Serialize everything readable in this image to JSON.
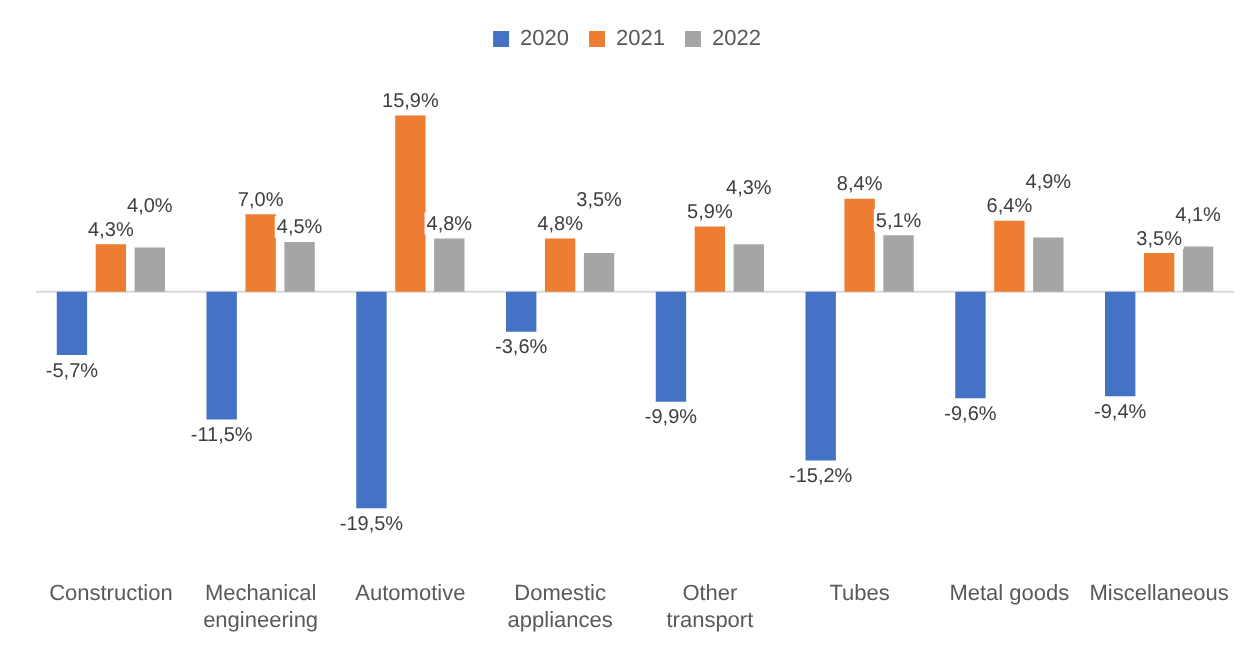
{
  "chart_data": {
    "type": "bar",
    "categories": [
      "Construction",
      "Mechanical engineering",
      "Automotive",
      "Domestic appliances",
      "Other transport",
      "Tubes",
      "Metal goods",
      "Miscellaneous"
    ],
    "series": [
      {
        "name": "2020",
        "color": "#4472c4",
        "values": [
          -5.7,
          -11.5,
          -19.5,
          -3.6,
          -9.9,
          -15.2,
          -9.6,
          -9.4
        ],
        "value_labels": [
          "-5,7%",
          "-11,5%",
          "-19,5%",
          "-3,6%",
          "-9,9%",
          "-15,2%",
          "-9,6%",
          "-9,4%"
        ]
      },
      {
        "name": "2021",
        "color": "#ed7d31",
        "values": [
          4.3,
          7.0,
          15.9,
          4.8,
          5.9,
          8.4,
          6.4,
          3.5
        ],
        "value_labels": [
          "4,3%",
          "7,0%",
          "15,9%",
          "4,8%",
          "5,9%",
          "8,4%",
          "6,4%",
          "3,5%"
        ]
      },
      {
        "name": "2022",
        "color": "#a5a5a5",
        "values": [
          4.0,
          4.5,
          4.8,
          3.5,
          4.3,
          5.1,
          4.9,
          4.1
        ],
        "value_labels": [
          "4,0%",
          "4,5%",
          "4,8%",
          "3,5%",
          "4,3%",
          "5,1%",
          "4,9%",
          "4,1%"
        ]
      }
    ],
    "grid": false,
    "legend": "top"
  }
}
